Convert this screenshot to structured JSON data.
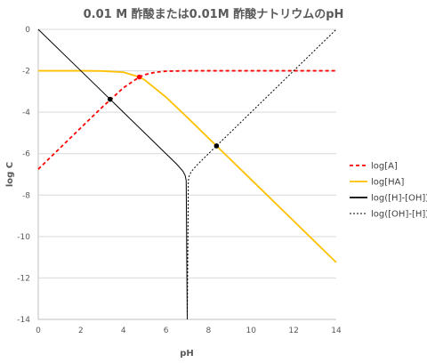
{
  "chart_data": {
    "type": "line",
    "title": "0.01 M 酢酸または0.01M 酢酸ナトリウムのpH",
    "xlabel": "pH",
    "ylabel": "log C",
    "xlim": [
      0,
      14
    ],
    "ylim": [
      -14,
      0
    ],
    "xticks": [
      "0",
      "2",
      "4",
      "6",
      "8",
      "10",
      "12",
      "14"
    ],
    "yticks": [
      "0",
      "-2",
      "-4",
      "-6",
      "-8",
      "-10",
      "-12",
      "-14"
    ],
    "grid": "horizontal",
    "legend_position": "right",
    "pKa": 4.75,
    "total_concentration_log": -2,
    "series": [
      {
        "name": "log[A]",
        "color": "#FF0000",
        "style": "dashed",
        "x": [
          0,
          1,
          2,
          3,
          4,
          4.75,
          5,
          5.5,
          6,
          7,
          8,
          10,
          12,
          14
        ],
        "y": [
          -6.75,
          -5.75,
          -4.75,
          -3.76,
          -2.82,
          -2.3,
          -2.19,
          -2.07,
          -2.02,
          -2.0,
          -2.0,
          -2.0,
          -2.0,
          -2.0
        ]
      },
      {
        "name": "log[HA]",
        "color": "#FFC000",
        "style": "solid",
        "x": [
          0,
          2,
          3,
          4,
          4.75,
          5,
          6,
          7,
          8,
          10,
          12,
          14
        ],
        "y": [
          -2.0,
          -2.0,
          -2.01,
          -2.07,
          -2.3,
          -2.44,
          -3.27,
          -4.25,
          -5.25,
          -7.25,
          -9.25,
          -11.25
        ]
      },
      {
        "name": "log([H]-[OH])",
        "color": "#000000",
        "style": "solid",
        "x": [
          0,
          2,
          4,
          6,
          6.5,
          6.8,
          6.9,
          6.95,
          7.0
        ],
        "y": [
          0,
          -2,
          -4,
          -6,
          -6.5,
          -6.85,
          -7.05,
          -7.3,
          -14
        ]
      },
      {
        "name": "log([OH]-[H])",
        "color": "#000000",
        "style": "dotted",
        "x": [
          7.0,
          7.05,
          7.1,
          7.2,
          7.5,
          8,
          10,
          12,
          14
        ],
        "y": [
          -14,
          -7.3,
          -7.05,
          -6.85,
          -6.5,
          -6,
          -4,
          -2,
          0
        ]
      }
    ],
    "markers": [
      {
        "x": 3.375,
        "y": -3.375,
        "color": "#000000"
      },
      {
        "x": 4.75,
        "y": -2.3,
        "color": "#FF0000"
      },
      {
        "x": 8.375,
        "y": -5.625,
        "color": "#000000"
      }
    ]
  }
}
